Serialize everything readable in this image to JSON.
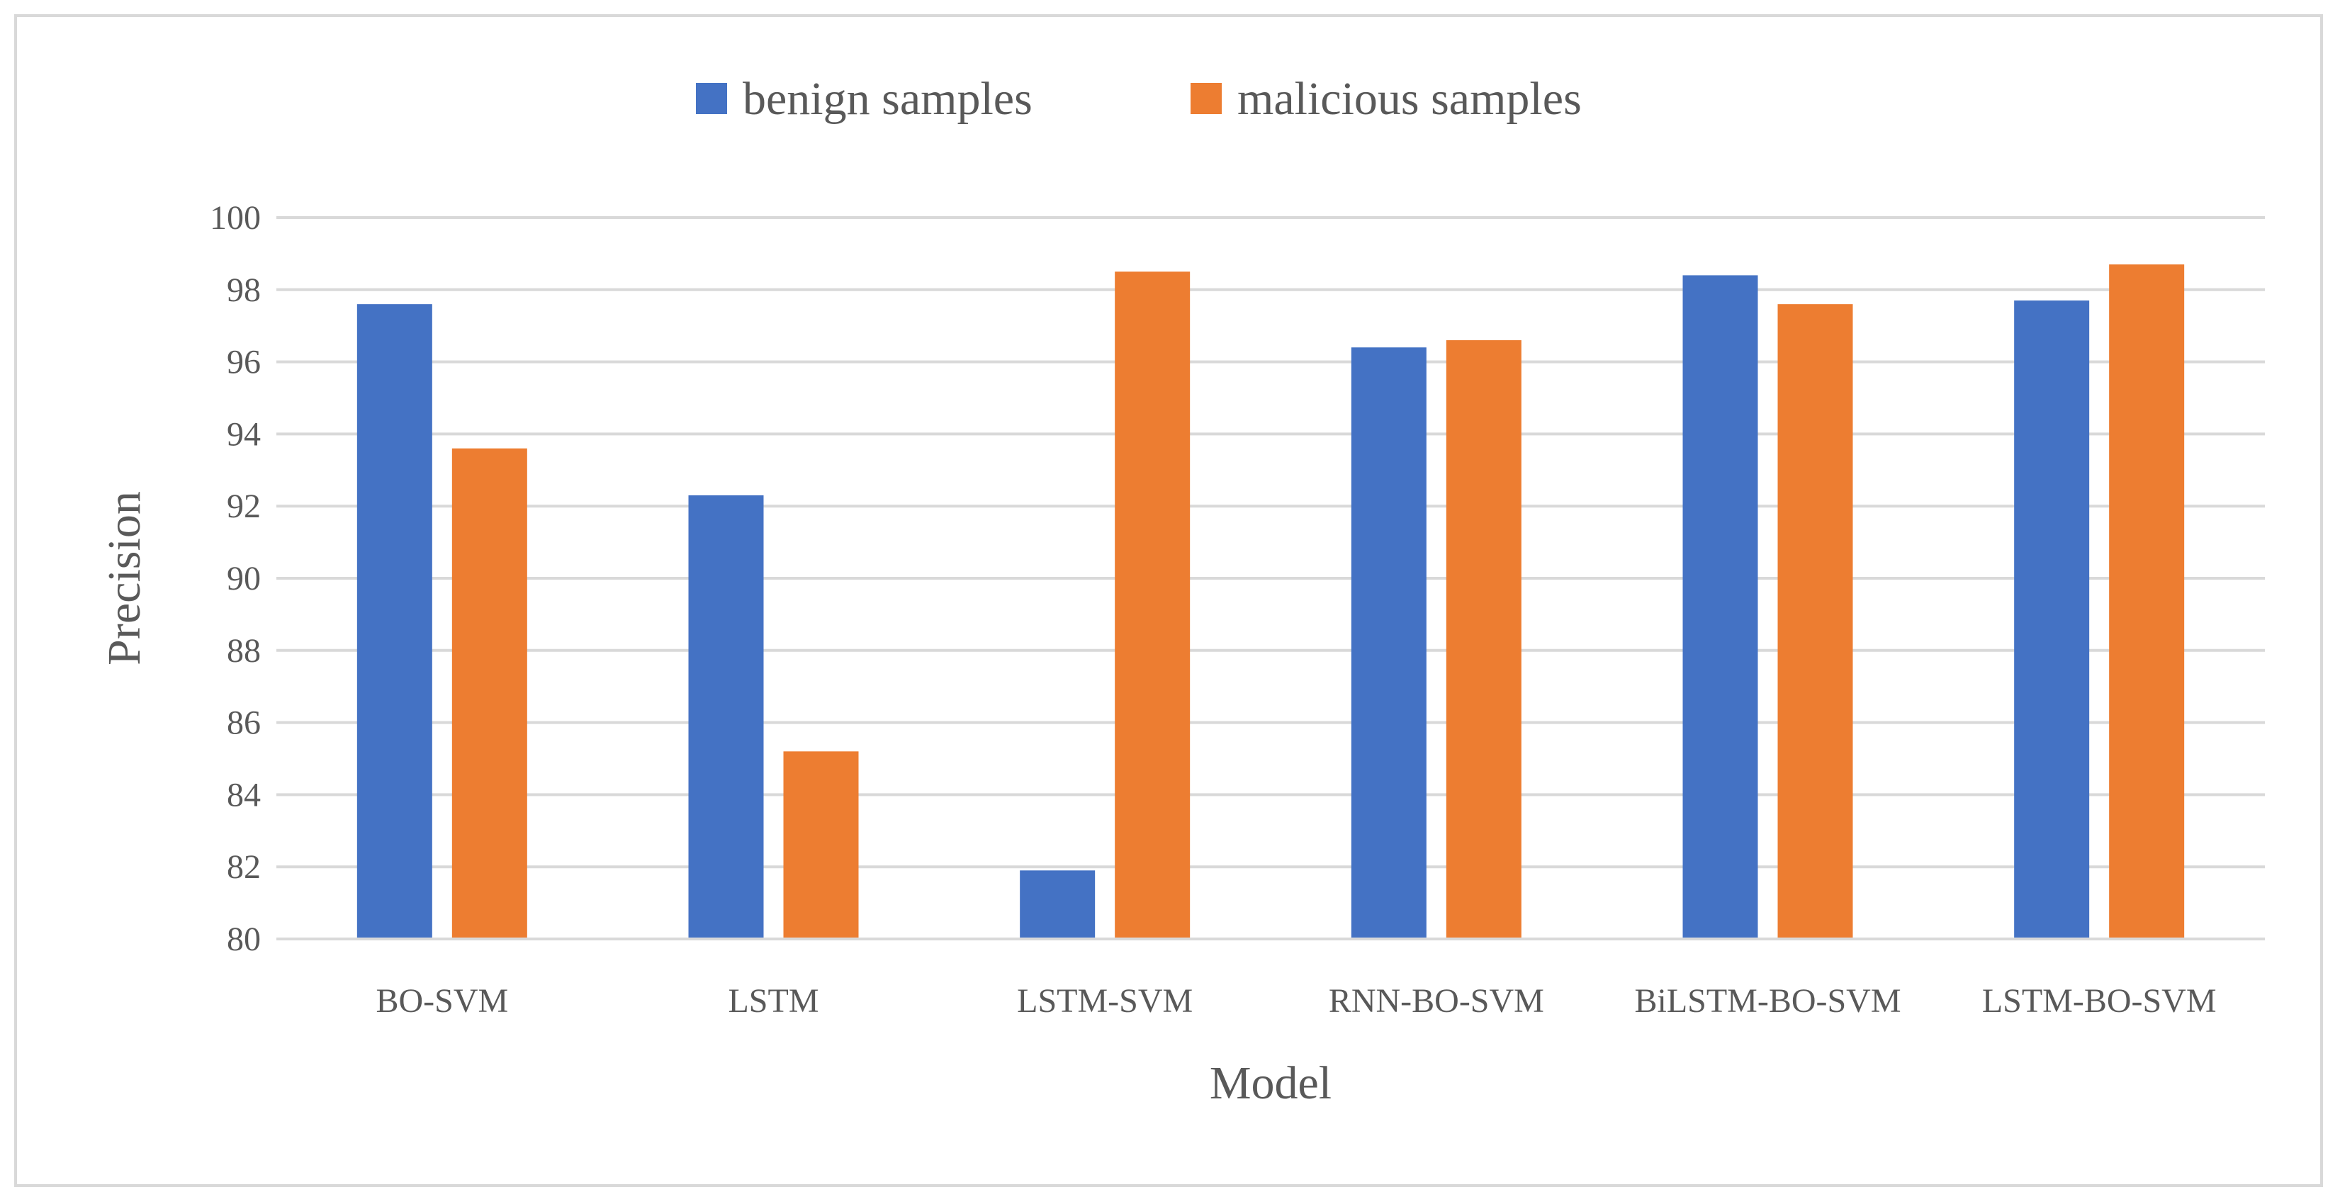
{
  "chart_data": {
    "type": "bar",
    "title": "",
    "xlabel": "Model",
    "ylabel": "Precision",
    "categories": [
      "BO-SVM",
      "LSTM",
      "LSTM-SVM",
      "RNN-BO-SVM",
      "BiLSTM-BO-SVM",
      "LSTM-BO-SVM"
    ],
    "series": [
      {
        "name": "benign samples",
        "color": "#4472c4",
        "values": [
          97.6,
          92.3,
          81.9,
          96.4,
          98.4,
          97.7
        ]
      },
      {
        "name": "malicious samples",
        "color": "#ed7d31",
        "values": [
          93.6,
          85.2,
          98.5,
          96.6,
          97.6,
          98.7
        ]
      }
    ],
    "ylim": [
      80,
      100
    ],
    "yticks": [
      80,
      82,
      84,
      86,
      88,
      90,
      92,
      94,
      96,
      98,
      100
    ],
    "grid": true,
    "legend_position": "top"
  }
}
